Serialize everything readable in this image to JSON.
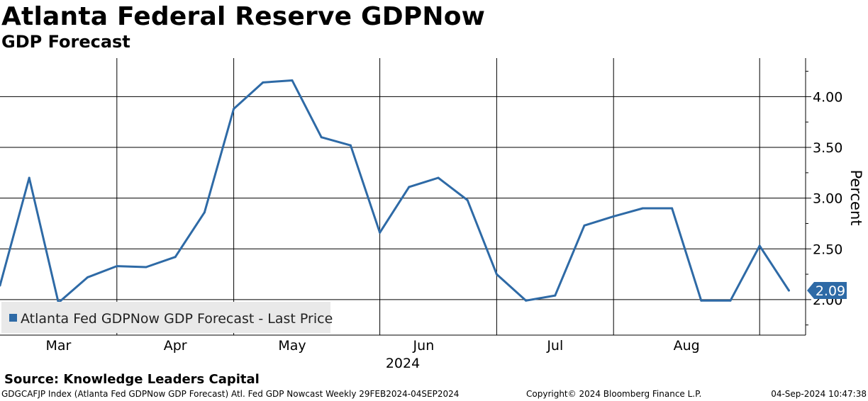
{
  "header": {
    "title": "Atlanta Federal Reserve GDPNow",
    "subtitle": "GDP Forecast"
  },
  "chart_data": {
    "type": "line",
    "title": "Atlanta Federal Reserve GDPNow",
    "subtitle": "GDP Forecast",
    "xlabel": "2024",
    "ylabel": "Percent",
    "ylim": [
      1.65,
      4.38
    ],
    "yticks": [
      2.0,
      2.5,
      3.0,
      3.5,
      4.0
    ],
    "ytick_labels": [
      "2.00",
      "2.50",
      "3.00",
      "3.50",
      "4.00"
    ],
    "month_labels": [
      "Mar",
      "Apr",
      "May",
      "Jun",
      "Jul",
      "Aug"
    ],
    "month_label_weeks": [
      2,
      6,
      10,
      14.5,
      19,
      23.5
    ],
    "month_divider_weeks": [
      4,
      8,
      13,
      17,
      21,
      26
    ],
    "series": [
      {
        "name": "Atlanta Fed GDPNow GDP Forecast - Last Price",
        "color": "#2e6aa6",
        "x": [
          0,
          1,
          2,
          3,
          4,
          5,
          6,
          7,
          8,
          9,
          10,
          11,
          12,
          13,
          14,
          15,
          16,
          17,
          18,
          19,
          20,
          21,
          22,
          23,
          24,
          25,
          26,
          27
        ],
        "values": [
          2.14,
          3.2,
          1.97,
          2.22,
          2.33,
          2.32,
          2.42,
          2.86,
          3.88,
          4.14,
          4.16,
          3.6,
          3.52,
          2.66,
          3.11,
          3.2,
          2.98,
          2.25,
          1.99,
          2.04,
          2.73,
          2.82,
          2.9,
          2.9,
          1.99,
          1.99,
          2.53,
          2.09
        ]
      }
    ],
    "last_price_label": "2.09",
    "legend_position": "bottom-left",
    "grid": true
  },
  "footer": {
    "source": "Source: Knowledge Leaders Capital",
    "index_info": "GDGCAFJP Index (Atlanta Fed GDPNow GDP Forecast) Atl. Fed GDP Nowcast  Weekly 29FEB2024-04SEP2024",
    "copyright": "Copyright© 2024 Bloomberg Finance L.P.",
    "timestamp": "04-Sep-2024 10:47:38"
  }
}
